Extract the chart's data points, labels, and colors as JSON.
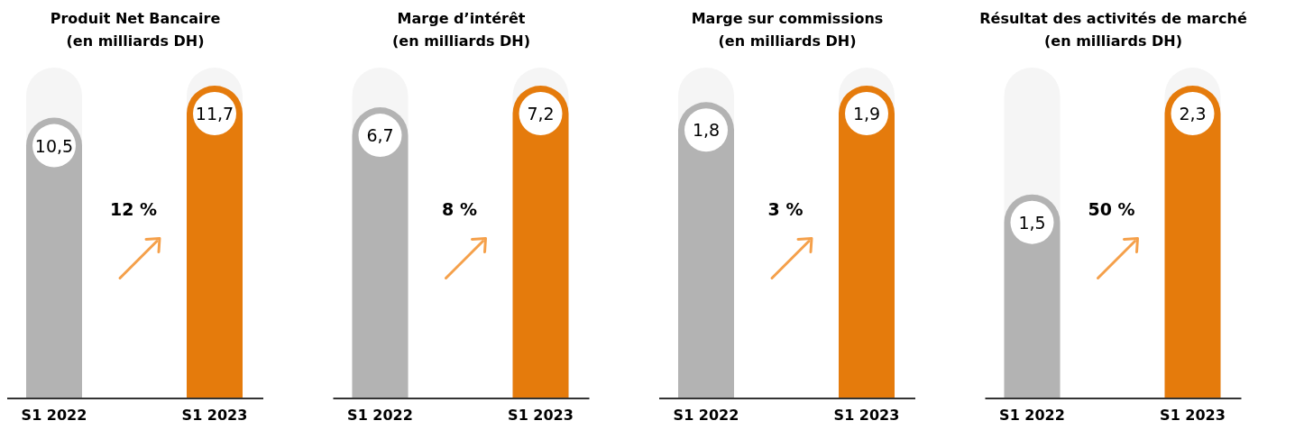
{
  "chart_data": [
    {
      "type": "bar",
      "title": "Produit Net Bancaire",
      "subtitle": "(en milliards DH)",
      "categories": [
        "S1 2022",
        "S1 2023"
      ],
      "values": [
        10.5,
        11.7
      ],
      "value_labels": [
        "10,5",
        "11,7"
      ],
      "colors": [
        "#b3b3b3",
        "#e57b0c"
      ],
      "annotations": [
        "12 %"
      ]
    },
    {
      "type": "bar",
      "title": "Marge d’intérêt",
      "subtitle": "(en milliards DH)",
      "categories": [
        "S1 2022",
        "S1 2023"
      ],
      "values": [
        6.7,
        7.2
      ],
      "value_labels": [
        "6,7",
        "7,2"
      ],
      "colors": [
        "#b3b3b3",
        "#e57b0c"
      ],
      "annotations": [
        "8 %"
      ]
    },
    {
      "type": "bar",
      "title": "Marge sur commissions",
      "subtitle": "(en milliards DH)",
      "categories": [
        "S1 2022",
        "S1 2023"
      ],
      "values": [
        1.8,
        1.9
      ],
      "value_labels": [
        "1,8",
        "1,9"
      ],
      "colors": [
        "#b3b3b3",
        "#e57b0c"
      ],
      "annotations": [
        "3 %"
      ]
    },
    {
      "type": "bar",
      "title": "Résultat des activités de marché",
      "subtitle": "(en milliards DH)",
      "categories": [
        "S1 2022",
        "S1 2023"
      ],
      "values": [
        1.5,
        2.3
      ],
      "value_labels": [
        "1,5",
        "2,3"
      ],
      "colors": [
        "#b3b3b3",
        "#e57b0c"
      ],
      "annotations": [
        "50 %"
      ]
    }
  ]
}
